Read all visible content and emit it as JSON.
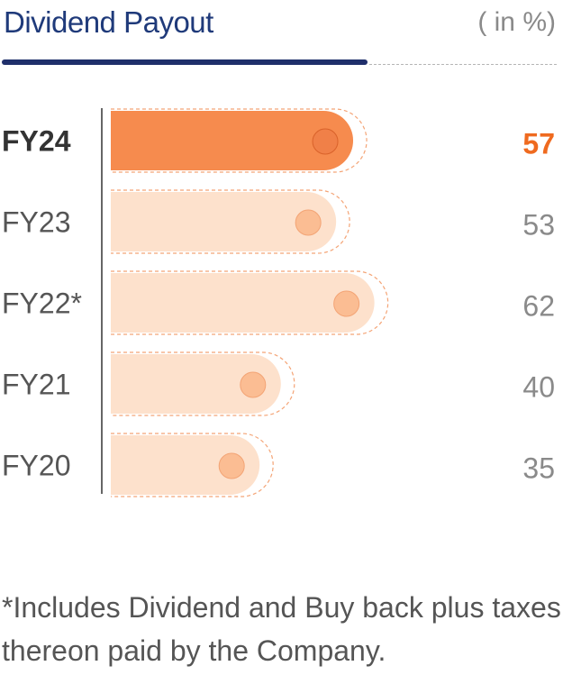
{
  "title": "Dividend Payout",
  "unit": "( in %)",
  "footnote": "*Includes Dividend and Buy back plus taxes thereon paid by the Company.",
  "colors": {
    "highlight": "#f68b4e",
    "highlight_text": "#ef6a1f",
    "normal_fill": "#fde1cc",
    "dot_highlight": "#f08048",
    "dot_normal": "#fbbd93",
    "dash": "#f4a476"
  },
  "chart_data": {
    "type": "bar",
    "orientation": "horizontal",
    "categories": [
      "FY24",
      "FY23",
      "FY22*",
      "FY21",
      "FY20"
    ],
    "values": [
      57,
      53,
      62,
      40,
      35
    ],
    "highlight_index": 0,
    "xlim": [
      0,
      70
    ]
  }
}
